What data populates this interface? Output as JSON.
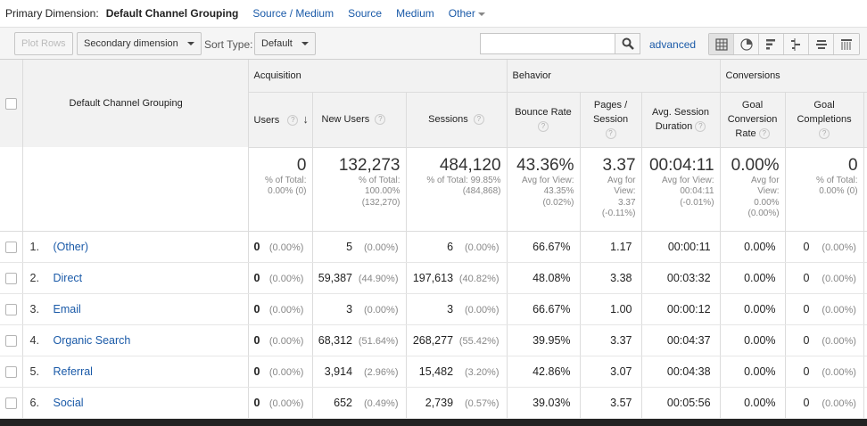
{
  "primary_dimension": {
    "label": "Primary Dimension:",
    "current": "Default Channel Grouping",
    "options": [
      "Source / Medium",
      "Source",
      "Medium"
    ],
    "other": "Other"
  },
  "toolbar": {
    "plot_rows": "Plot Rows",
    "secondary_dimension": "Secondary dimension",
    "sort_type_label": "Sort Type:",
    "sort_type_value": "Default",
    "search_value": "",
    "search_placeholder": "",
    "advanced": "advanced"
  },
  "table": {
    "dimension_header": "Default Channel Grouping",
    "groups": [
      "Acquisition",
      "Behavior",
      "Conversions"
    ],
    "metric_headers": [
      "Users",
      "New Users",
      "Sessions",
      "Bounce Rate",
      "Pages / Session",
      "Avg. Session Duration",
      "Goal Conversion Rate",
      "Goal Completions"
    ],
    "totals": {
      "users": {
        "value": "0",
        "sub": [
          "% of Total:",
          "0.00% (0)"
        ]
      },
      "new_users": {
        "value": "132,273",
        "sub": [
          "% of Total:",
          "100.00%",
          "(132,270)"
        ]
      },
      "sessions": {
        "value": "484,120",
        "sub": [
          "% of Total: 99.85%",
          "(484,868)"
        ]
      },
      "bounce_rate": {
        "value": "43.36%",
        "sub": [
          "Avg for View:",
          "43.35%",
          "(0.02%)"
        ]
      },
      "pages_session": {
        "value": "3.37",
        "sub": [
          "Avg for",
          "View:",
          "3.37",
          "(-0.11%)"
        ]
      },
      "avg_duration": {
        "value": "00:04:11",
        "sub": [
          "Avg for View:",
          "00:04:11",
          "(-0.01%)"
        ]
      },
      "goal_conv_rate": {
        "value": "0.00%",
        "sub": [
          "Avg for",
          "View:",
          "0.00%",
          "(0.00%)"
        ]
      },
      "goal_completions": {
        "value": "0",
        "sub": [
          "% of Total:",
          "0.00% (0)"
        ]
      }
    },
    "rows": [
      {
        "idx": "1.",
        "name": "(Other)",
        "users": "0",
        "users_pct": "(0.00%)",
        "new_users": "5",
        "new_users_pct": "(0.00%)",
        "sessions": "6",
        "sessions_pct": "(0.00%)",
        "bounce": "66.67%",
        "pps": "1.17",
        "dur": "00:00:11",
        "gcr": "0.00%",
        "gc": "0",
        "gc_pct": "(0.00%)"
      },
      {
        "idx": "2.",
        "name": "Direct",
        "users": "0",
        "users_pct": "(0.00%)",
        "new_users": "59,387",
        "new_users_pct": "(44.90%)",
        "sessions": "197,613",
        "sessions_pct": "(40.82%)",
        "bounce": "48.08%",
        "pps": "3.38",
        "dur": "00:03:32",
        "gcr": "0.00%",
        "gc": "0",
        "gc_pct": "(0.00%)"
      },
      {
        "idx": "3.",
        "name": "Email",
        "users": "0",
        "users_pct": "(0.00%)",
        "new_users": "3",
        "new_users_pct": "(0.00%)",
        "sessions": "3",
        "sessions_pct": "(0.00%)",
        "bounce": "66.67%",
        "pps": "1.00",
        "dur": "00:00:12",
        "gcr": "0.00%",
        "gc": "0",
        "gc_pct": "(0.00%)"
      },
      {
        "idx": "4.",
        "name": "Organic Search",
        "users": "0",
        "users_pct": "(0.00%)",
        "new_users": "68,312",
        "new_users_pct": "(51.64%)",
        "sessions": "268,277",
        "sessions_pct": "(55.42%)",
        "bounce": "39.95%",
        "pps": "3.37",
        "dur": "00:04:37",
        "gcr": "0.00%",
        "gc": "0",
        "gc_pct": "(0.00%)"
      },
      {
        "idx": "5.",
        "name": "Referral",
        "users": "0",
        "users_pct": "(0.00%)",
        "new_users": "3,914",
        "new_users_pct": "(2.96%)",
        "sessions": "15,482",
        "sessions_pct": "(3.20%)",
        "bounce": "42.86%",
        "pps": "3.07",
        "dur": "00:04:38",
        "gcr": "0.00%",
        "gc": "0",
        "gc_pct": "(0.00%)"
      },
      {
        "idx": "6.",
        "name": "Social",
        "users": "0",
        "users_pct": "(0.00%)",
        "new_users": "652",
        "new_users_pct": "(0.49%)",
        "sessions": "2,739",
        "sessions_pct": "(0.57%)",
        "bounce": "39.03%",
        "pps": "3.57",
        "dur": "00:05:56",
        "gcr": "0.00%",
        "gc": "0",
        "gc_pct": "(0.00%)"
      }
    ]
  },
  "icons": {
    "help": "?",
    "sort": "arrow-down",
    "views": [
      "table-view",
      "pie-view",
      "performance-view",
      "comparison-view",
      "term-cloud-view",
      "pivot-view"
    ]
  },
  "colors": {
    "link": "#1a5aa8",
    "header_bg": "#f2f2f2",
    "toolbar_bg": "#f5f5f5"
  }
}
